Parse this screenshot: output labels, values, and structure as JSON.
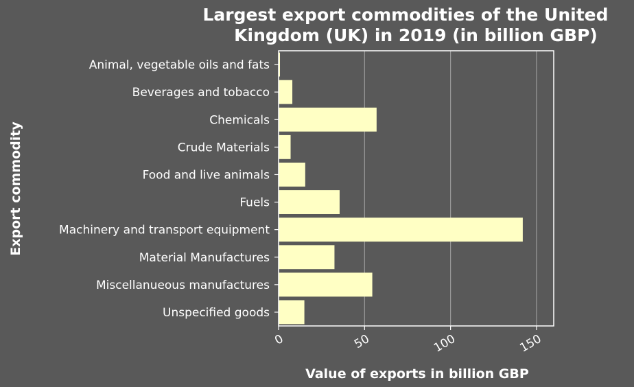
{
  "chart_data": {
    "type": "bar",
    "orientation": "horizontal",
    "title_lines": [
      "Largest export commodities of the United",
      "Kingdom (UK) in 2019 (in billion GBP)"
    ],
    "xlabel": "Value of exports in billion GBP",
    "ylabel": "Export commodity",
    "categories": [
      "Animal, vegetable oils and fats",
      "Beverages and tobacco",
      "Chemicals",
      "Crude Materials",
      "Food and live animals",
      "Fuels",
      "Machinery and transport equipment",
      "Material Manufactures",
      "Miscellanueous manufactures",
      "Unspecified goods"
    ],
    "values": [
      0.8,
      8,
      57,
      7,
      15.5,
      35.5,
      142,
      32.5,
      54.5,
      15
    ],
    "xlim": [
      0,
      160
    ],
    "xticks": [
      0,
      50,
      100,
      150
    ],
    "xtick_labels": [
      "0",
      "50",
      "100",
      "150"
    ],
    "grid": "vertical",
    "bar_color": "#ffffc4",
    "background_color": "#595959",
    "text_color": "#ffffff",
    "grid_color": "#9a9a9a"
  }
}
